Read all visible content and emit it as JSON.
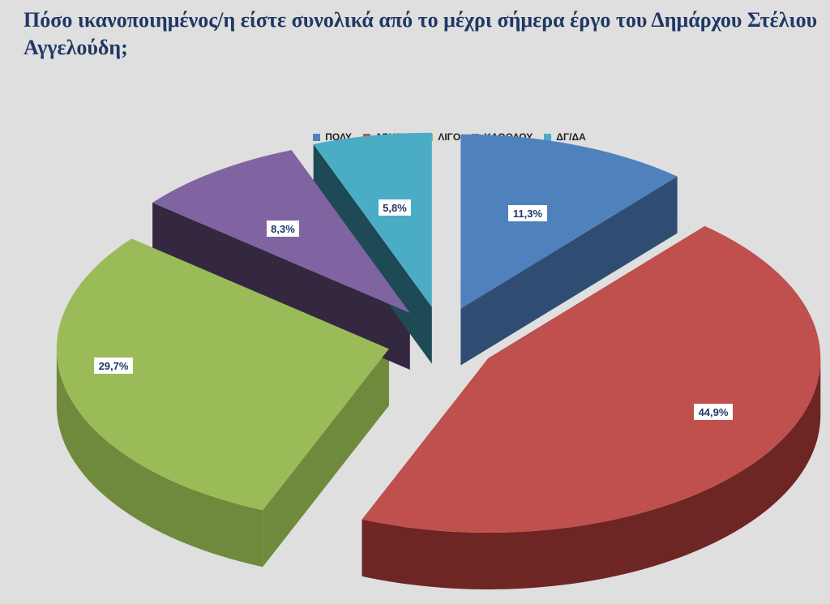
{
  "title": "Πόσο ικανοποιημένος/η είστε συνολικά  από το μέχρι σήμερα έργο του Δημάρχου Στέλιου Αγγελούδη;",
  "chart_data": {
    "type": "pie",
    "title": "Πόσο ικανοποιημένος/η είστε συνολικά  από το μέχρι σήμερα έργο του Δημάρχου Στέλιου Αγγελούδη;",
    "legend_position": "top",
    "exploded": true,
    "three_d": true,
    "slices": [
      {
        "name": "ΠΟΛΥ",
        "value": 11.3,
        "label": "11,3%",
        "color": "#4f81bd",
        "side_color": "#2f4d73"
      },
      {
        "name": "ΑΡΚΕΤΑ",
        "value": 44.9,
        "label": "44,9%",
        "color": "#c0504d",
        "side_color": "#6e2624"
      },
      {
        "name": "ΛΙΓΟ",
        "value": 29.7,
        "label": "29,7%",
        "color": "#9bbb59",
        "side_color": "#6f8a3c"
      },
      {
        "name": "ΚΑΘΟΛΟΥ",
        "value": 8.3,
        "label": "8,3%",
        "color": "#8064a2",
        "side_color": "#332840"
      },
      {
        "name": "ΔΓ/ΔΑ",
        "value": 5.8,
        "label": "5,8%",
        "color": "#4bacc6",
        "side_color": "#1d4a54"
      }
    ]
  }
}
